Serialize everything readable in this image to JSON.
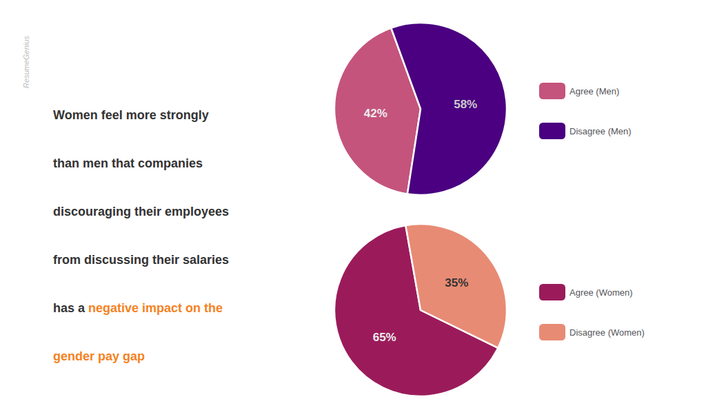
{
  "chart_data": [
    {
      "type": "pie",
      "categories": [
        "Agree (Men)",
        "Disagree (Men)"
      ],
      "values": [
        42,
        58
      ],
      "value_labels": [
        "42%",
        "58%"
      ],
      "colors": [
        "#c4547c",
        "#4a0080"
      ],
      "data_labels": true,
      "legend": "right",
      "annotations": [
        [
          {
            "text": "Women feel more strongly",
            "color": "#333333"
          }
        ],
        [
          {
            "text": "than men that companies",
            "color": "#333333"
          }
        ],
        [
          {
            "text": "discouraging their employees",
            "color": "#333333"
          }
        ],
        [
          {
            "text": "from discussing their salaries",
            "color": "#333333"
          }
        ],
        [
          {
            "text": "has a ",
            "color": "#333333"
          },
          {
            "text": "negative impact on the",
            "color": "#f5821f"
          }
        ],
        [
          {
            "text": "gender pay gap",
            "color": "#f5821f"
          }
        ]
      ],
      "watermark": {
        "text": "ResumeGenius",
        "color": "#bbbbbb"
      }
    },
    {
      "type": "pie",
      "categories": [
        "Agree (Women)",
        "Disagree (Women)"
      ],
      "values": [
        65,
        35
      ],
      "value_labels": [
        "65%",
        "35%"
      ],
      "colors": [
        "#9b1b5a",
        "#e88b74"
      ],
      "data_labels": true,
      "legend": "right"
    }
  ]
}
